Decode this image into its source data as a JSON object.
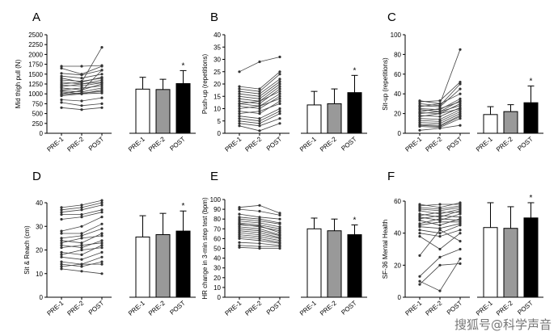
{
  "watermark": "搜狐号@科学声音",
  "chart_data": [
    {
      "panel": "A",
      "type": "line+bar",
      "ylabel": "Mid thigh pull (N)",
      "ylim": [
        0,
        2500
      ],
      "yticks": [
        0,
        250,
        500,
        750,
        1000,
        1250,
        1500,
        1750,
        2000,
        2250,
        2500
      ],
      "categories": [
        "PRE-1",
        "PRE-2",
        "POST"
      ],
      "individuals": [
        [
          1700,
          1700,
          1720
        ],
        [
          1650,
          1500,
          1700
        ],
        [
          1520,
          1480,
          1600
        ],
        [
          1450,
          1400,
          1500
        ],
        [
          1400,
          1300,
          1420
        ],
        [
          1350,
          1320,
          1400
        ],
        [
          1300,
          1250,
          1350
        ],
        [
          1250,
          1300,
          2180
        ],
        [
          1220,
          1200,
          1280
        ],
        [
          1180,
          1250,
          1300
        ],
        [
          1150,
          1100,
          1250
        ],
        [
          1100,
          1150,
          1200
        ],
        [
          1080,
          1050,
          1150
        ],
        [
          1050,
          1000,
          1100
        ],
        [
          1000,
          1080,
          1600
        ],
        [
          980,
          1020,
          1060
        ],
        [
          950,
          1000,
          1020
        ],
        [
          850,
          820,
          900
        ],
        [
          780,
          700,
          750
        ],
        [
          650,
          600,
          650
        ]
      ],
      "bars": [
        {
          "category": "PRE-1",
          "mean": 1120,
          "sd": 300,
          "color": "#ffffff"
        },
        {
          "category": "PRE-2",
          "mean": 1110,
          "sd": 260,
          "color": "#999999"
        },
        {
          "category": "POST",
          "mean": 1260,
          "sd": 330,
          "color": "#000000"
        }
      ],
      "significance": "*"
    },
    {
      "panel": "B",
      "type": "line+bar",
      "ylabel": "Push-up (repetitions)",
      "ylim": [
        0,
        40
      ],
      "yticks": [
        0,
        5,
        10,
        15,
        20,
        25,
        30,
        35,
        40
      ],
      "categories": [
        "PRE-1",
        "PRE-2",
        "POST"
      ],
      "individuals": [
        [
          25,
          29,
          31
        ],
        [
          19,
          18,
          25
        ],
        [
          18,
          17,
          24
        ],
        [
          17,
          16,
          22
        ],
        [
          16,
          15,
          21
        ],
        [
          15,
          14,
          20
        ],
        [
          14,
          13,
          19
        ],
        [
          13,
          12,
          18
        ],
        [
          12,
          13,
          17
        ],
        [
          12,
          11,
          16
        ],
        [
          11,
          10,
          15
        ],
        [
          10,
          11,
          14
        ],
        [
          9,
          8,
          13
        ],
        [
          8,
          9,
          12
        ],
        [
          7,
          6,
          10
        ],
        [
          6,
          5,
          9
        ],
        [
          5,
          4,
          8
        ],
        [
          4,
          3,
          6
        ],
        [
          3,
          1,
          4
        ]
      ],
      "bars": [
        {
          "category": "PRE-1",
          "mean": 11.5,
          "sd": 5.5,
          "color": "#ffffff"
        },
        {
          "category": "PRE-2",
          "mean": 12,
          "sd": 6,
          "color": "#999999"
        },
        {
          "category": "POST",
          "mean": 16.5,
          "sd": 7,
          "color": "#000000"
        }
      ],
      "significance": "*"
    },
    {
      "panel": "C",
      "type": "line+bar",
      "ylabel": "Sit-up (repetitions)",
      "ylim": [
        0,
        100
      ],
      "yticks": [
        0,
        20,
        40,
        60,
        80,
        100
      ],
      "categories": [
        "PRE-1",
        "PRE-2",
        "POST"
      ],
      "individuals": [
        [
          33,
          30,
          85
        ],
        [
          32,
          33,
          52
        ],
        [
          30,
          28,
          50
        ],
        [
          28,
          27,
          45
        ],
        [
          27,
          30,
          40
        ],
        [
          25,
          24,
          35
        ],
        [
          24,
          22,
          33
        ],
        [
          22,
          25,
          32
        ],
        [
          21,
          20,
          30
        ],
        [
          20,
          22,
          28
        ],
        [
          18,
          17,
          26
        ],
        [
          17,
          20,
          25
        ],
        [
          15,
          14,
          24
        ],
        [
          13,
          12,
          22
        ],
        [
          11,
          10,
          20
        ],
        [
          9,
          8,
          18
        ],
        [
          8,
          7,
          17
        ],
        [
          7,
          6,
          15
        ],
        [
          3,
          5,
          8
        ]
      ],
      "bars": [
        {
          "category": "PRE-1",
          "mean": 19,
          "sd": 8,
          "color": "#ffffff"
        },
        {
          "category": "PRE-2",
          "mean": 22,
          "sd": 7,
          "color": "#999999"
        },
        {
          "category": "POST",
          "mean": 31,
          "sd": 17,
          "color": "#000000"
        }
      ],
      "significance": "*"
    },
    {
      "panel": "D",
      "type": "line+bar",
      "ylabel": "Sit & Reach (cm)",
      "ylim": [
        0,
        40
      ],
      "yticks": [
        0,
        10,
        20,
        30,
        40
      ],
      "categories": [
        "PRE-1",
        "PRE-2",
        "POST"
      ],
      "individuals": [
        [
          38,
          39,
          41
        ],
        [
          37,
          38,
          40
        ],
        [
          36,
          37,
          39
        ],
        [
          35,
          35,
          37
        ],
        [
          33,
          34,
          36
        ],
        [
          28,
          30,
          34
        ],
        [
          27,
          27,
          31
        ],
        [
          25,
          26,
          29
        ],
        [
          24,
          23,
          27
        ],
        [
          23,
          25,
          26
        ],
        [
          22,
          21,
          24
        ],
        [
          21,
          22,
          23
        ],
        [
          19,
          18,
          22
        ],
        [
          18,
          20,
          21
        ],
        [
          17,
          16,
          19
        ],
        [
          15,
          14,
          17
        ],
        [
          14,
          13,
          15
        ],
        [
          13,
          14,
          14
        ],
        [
          12,
          11,
          10
        ]
      ],
      "bars": [
        {
          "category": "PRE-1",
          "mean": 25.5,
          "sd": 9,
          "color": "#ffffff"
        },
        {
          "category": "PRE-2",
          "mean": 26.5,
          "sd": 9,
          "color": "#999999"
        },
        {
          "category": "POST",
          "mean": 28,
          "sd": 8.5,
          "color": "#000000"
        }
      ],
      "significance": "*"
    },
    {
      "panel": "E",
      "type": "line+bar",
      "ylabel": "HR change in 3-min step test (bpm)",
      "ylim": [
        0,
        100
      ],
      "yticks": [
        0,
        10,
        20,
        30,
        40,
        50,
        60,
        70,
        80,
        90,
        100
      ],
      "categories": [
        "PRE-1",
        "PRE-2",
        "POST"
      ],
      "individuals": [
        [
          92,
          94,
          86
        ],
        [
          90,
          88,
          84
        ],
        [
          85,
          82,
          80
        ],
        [
          82,
          80,
          76
        ],
        [
          80,
          78,
          75
        ],
        [
          78,
          76,
          72
        ],
        [
          76,
          74,
          70
        ],
        [
          75,
          72,
          68
        ],
        [
          74,
          73,
          66
        ],
        [
          72,
          70,
          64
        ],
        [
          70,
          68,
          63
        ],
        [
          68,
          66,
          61
        ],
        [
          66,
          64,
          60
        ],
        [
          64,
          62,
          58
        ],
        [
          62,
          60,
          56
        ],
        [
          60,
          58,
          55
        ],
        [
          56,
          55,
          53
        ],
        [
          53,
          52,
          52
        ],
        [
          51,
          50,
          50
        ]
      ],
      "bars": [
        {
          "category": "PRE-1",
          "mean": 70,
          "sd": 11,
          "color": "#ffffff"
        },
        {
          "category": "PRE-2",
          "mean": 68,
          "sd": 12,
          "color": "#999999"
        },
        {
          "category": "POST",
          "mean": 64,
          "sd": 10,
          "color": "#000000"
        }
      ],
      "significance": "*"
    },
    {
      "panel": "F",
      "type": "line+bar",
      "ylabel": "SF-36 Mental Health",
      "ylim": [
        0,
        60
      ],
      "yticks": [
        0,
        20,
        40,
        60
      ],
      "categories": [
        "PRE-1",
        "PRE-2",
        "POST"
      ],
      "individuals": [
        [
          58,
          56,
          59
        ],
        [
          57,
          58,
          58
        ],
        [
          56,
          55,
          57
        ],
        [
          55,
          54,
          56
        ],
        [
          54,
          52,
          55
        ],
        [
          52,
          50,
          54
        ],
        [
          51,
          53,
          53
        ],
        [
          50,
          48,
          52
        ],
        [
          49,
          51,
          50
        ],
        [
          48,
          45,
          49
        ],
        [
          46,
          49,
          48
        ],
        [
          45,
          47,
          47
        ],
        [
          44,
          43,
          46
        ],
        [
          42,
          40,
          45
        ],
        [
          40,
          38,
          42
        ],
        [
          38,
          30,
          40
        ],
        [
          26,
          42,
          35
        ],
        [
          13,
          25,
          30
        ],
        [
          10,
          4,
          24
        ],
        [
          8,
          20,
          21
        ]
      ],
      "bars": [
        {
          "category": "PRE-1",
          "mean": 43.5,
          "sd": 15.5,
          "color": "#ffffff"
        },
        {
          "category": "PRE-2",
          "mean": 43,
          "sd": 13.5,
          "color": "#999999"
        },
        {
          "category": "POST",
          "mean": 49.5,
          "sd": 9.5,
          "color": "#000000"
        }
      ],
      "significance": "*"
    }
  ]
}
